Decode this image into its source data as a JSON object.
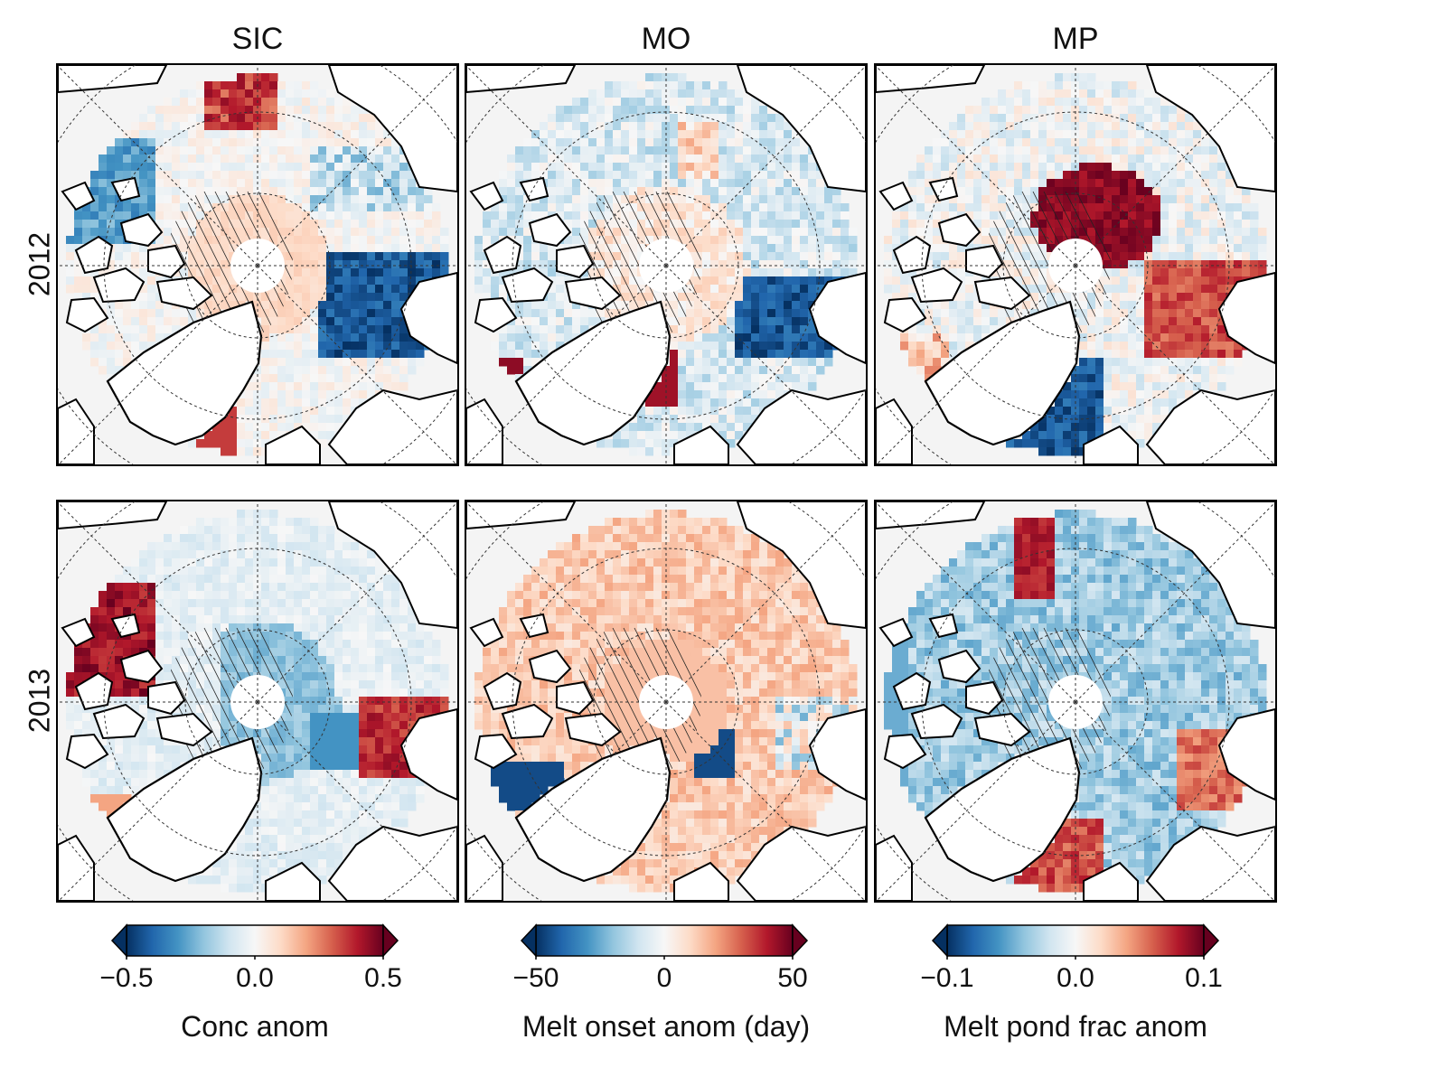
{
  "columns": [
    {
      "title": "SIC",
      "label": "Conc anom",
      "ticks": [
        "−0.5",
        "0.0",
        "0.5"
      ]
    },
    {
      "title": "MO",
      "label": "Melt onset anom (day)",
      "ticks": [
        "−50",
        "0",
        "50"
      ]
    },
    {
      "title": "MP",
      "label": "Melt pond frac anom",
      "ticks": [
        "−0.1",
        "0.0",
        "0.1"
      ]
    }
  ],
  "rows": [
    "2012",
    "2013"
  ],
  "colorbar": {
    "cmap": "RdBu_r",
    "colors": [
      "#053061",
      "#2166ac",
      "#4393c3",
      "#92c5de",
      "#d1e5f0",
      "#f7f7f7",
      "#fddbc7",
      "#f4a582",
      "#d6604d",
      "#b2182b",
      "#67001f"
    ],
    "extend": "both"
  },
  "colors": {
    "land": "#ffffff",
    "ocean_no_data": "#f4f4f4",
    "coastline": "#000000",
    "graticule": "#333333",
    "pole_hole": "#ffffff"
  },
  "panel_patterns": [
    {
      "row": "2012",
      "col": "SIC",
      "features": [
        "red rim north",
        "blue Laptev/Kara",
        "hatched Beaufort",
        "red East Greenland"
      ]
    },
    {
      "row": "2012",
      "col": "MO",
      "features": [
        "light blue interior",
        "red East Greenland strip",
        "blue Barents"
      ]
    },
    {
      "row": "2012",
      "col": "MP",
      "features": [
        "dark red central Arctic",
        "blue Fram/Barents",
        "red Kara"
      ]
    },
    {
      "row": "2013",
      "col": "SIC",
      "features": [
        "red Beaufort hatched",
        "light blue central",
        "red Kara"
      ]
    },
    {
      "row": "2013",
      "col": "MO",
      "features": [
        "light red central",
        "blue Baffin strip",
        "blue Barents"
      ]
    },
    {
      "row": "2013",
      "col": "MP",
      "features": [
        "blue central hatched",
        "red Chukchi",
        "red East Greenland"
      ]
    }
  ]
}
